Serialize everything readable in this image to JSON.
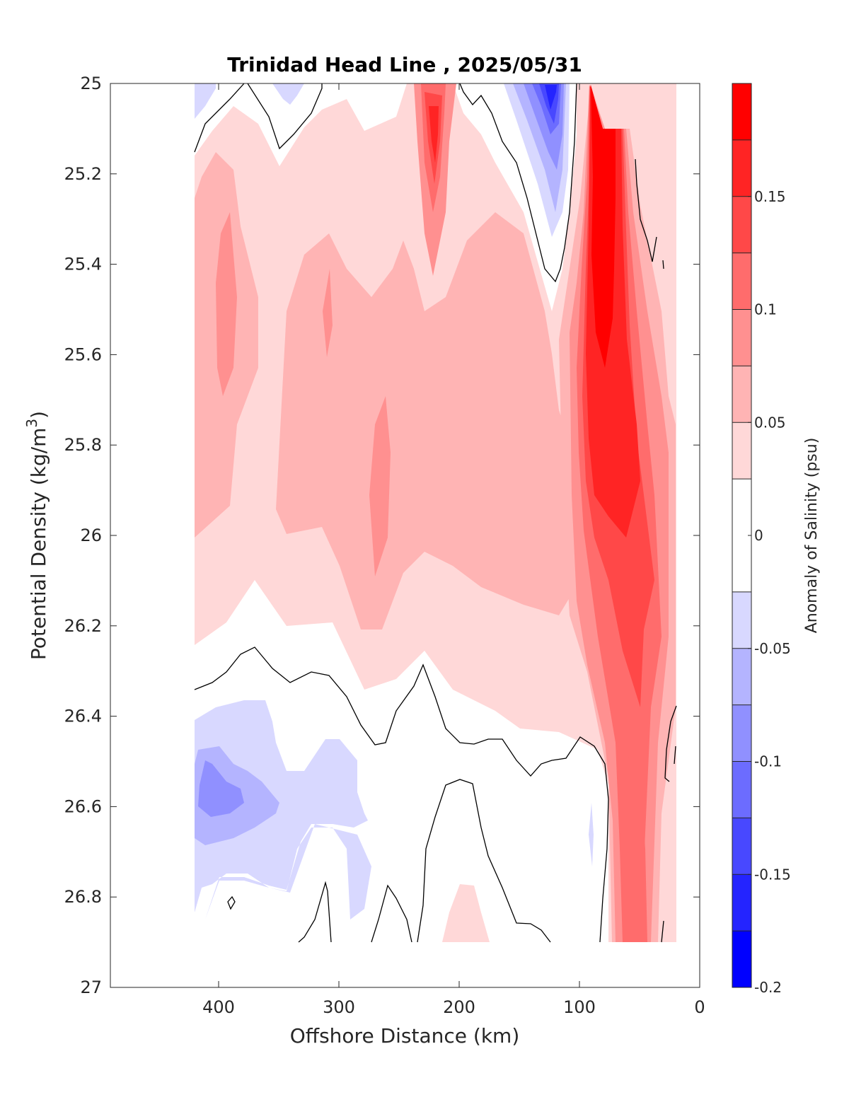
{
  "chart_data": {
    "type": "heatmap",
    "title": "Trinidad Head Line , 2025/05/31",
    "xlabel": "Offshore Distance (km)",
    "ylabel_main": "Potential Density (kg/m",
    "ylabel_sup": "3",
    "ylabel_close": ")",
    "colorbar_label": "Anomaly of Salinity (psu)",
    "xlim": [
      490,
      0
    ],
    "ylim": [
      25,
      27
    ],
    "y_reversed": true,
    "x_reversed": true,
    "x_ticks": [
      400,
      300,
      200,
      100,
      0
    ],
    "y_ticks": [
      25,
      25.2,
      25.4,
      25.6,
      25.8,
      26,
      26.2,
      26.4,
      26.6,
      26.8,
      27
    ],
    "colorbar": {
      "range": [
        -0.2,
        0.2
      ],
      "tick_values": [
        -0.2,
        -0.15,
        -0.1,
        -0.05,
        0,
        0.05,
        0.1,
        0.15
      ],
      "tick_labels": [
        "-0.2",
        "-0.15",
        "-0.1",
        "-0.05",
        "0",
        "0.05",
        "0.1",
        "0.15"
      ],
      "bin_edges": [
        -0.2,
        -0.175,
        -0.15,
        -0.125,
        -0.1,
        -0.075,
        -0.05,
        -0.025,
        0.025,
        0.05,
        0.075,
        0.1,
        0.125,
        0.15,
        0.175,
        0.2
      ],
      "bin_colors": [
        "#0000ff",
        "#2424ff",
        "#4848ff",
        "#6c6cff",
        "#9090ff",
        "#b4b4ff",
        "#d8d8ff",
        "#ffffff",
        "#ffd8d8",
        "#ffb4b4",
        "#ff9090",
        "#ff6c6c",
        "#ff4848",
        "#ff2424",
        "#ff0000"
      ]
    },
    "data_extent": {
      "x_range": [
        420,
        20
      ],
      "y_range": [
        25,
        26.9
      ]
    },
    "features": [
      {
        "name": "positive-anomaly-core-nearshore",
        "x_range": [
          95,
          50
        ],
        "y_range": [
          25.0,
          26.3
        ],
        "max_value": 0.2
      },
      {
        "name": "positive-anomaly-core-230km",
        "x_range": [
          235,
          205
        ],
        "y_range": [
          25.0,
          25.4
        ],
        "max_value": 0.15
      },
      {
        "name": "positive-anomaly-400km",
        "x_range": [
          410,
          380
        ],
        "y_range": [
          25.3,
          25.7
        ],
        "max_value": 0.1
      },
      {
        "name": "positive-anomaly-260km",
        "x_range": [
          275,
          245
        ],
        "y_range": [
          25.7,
          26.1
        ],
        "max_value": 0.1
      },
      {
        "name": "negative-anomaly-120km",
        "x_range": [
          155,
          100
        ],
        "y_range": [
          25.0,
          25.35
        ],
        "min_value": -0.175
      },
      {
        "name": "negative-anomaly-400km",
        "x_range": [
          420,
          290
        ],
        "y_range": [
          26.35,
          26.85
        ],
        "min_value": -0.1
      },
      {
        "name": "positive-anomaly-200km-deep",
        "x_range": [
          215,
          175
        ],
        "y_range": [
          26.77,
          26.9
        ],
        "max_value": 0.05
      }
    ]
  }
}
